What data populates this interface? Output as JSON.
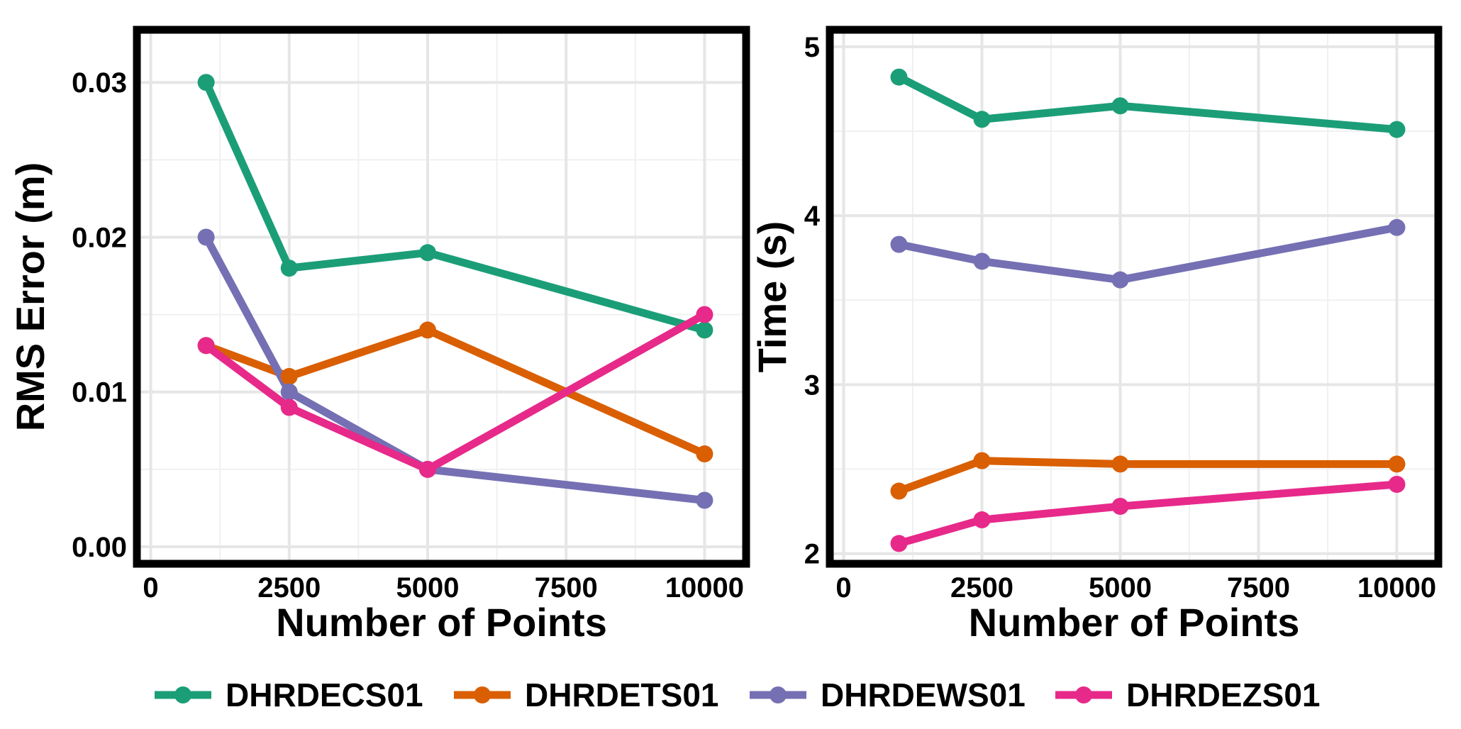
{
  "chart_data": [
    {
      "type": "line",
      "title": "",
      "xlabel": "Number of Points",
      "ylabel": "RMS Error (m)",
      "xlim": [
        -250,
        10750
      ],
      "ylim": [
        -0.0011,
        0.0334
      ],
      "x_ticks": [
        0,
        2500,
        5000,
        7500,
        10000
      ],
      "x_tick_labels": [
        "0",
        "2500",
        "5000",
        "7500",
        "10000"
      ],
      "y_ticks": [
        0,
        0.01,
        0.02,
        0.03
      ],
      "y_tick_labels": [
        "0.00",
        "0.01",
        "0.02",
        "0.03"
      ],
      "grid": true,
      "x": [
        1000,
        2500,
        5000,
        10000
      ],
      "series": [
        {
          "name": "DHRDECS01",
          "values": [
            0.03,
            0.018,
            0.019,
            0.014
          ]
        },
        {
          "name": "DHRDETS01",
          "values": [
            0.013,
            0.011,
            0.014,
            0.006
          ]
        },
        {
          "name": "DHRDEWS01",
          "values": [
            0.02,
            0.01,
            0.005,
            0.003
          ]
        },
        {
          "name": "DHRDEZS01",
          "values": [
            0.013,
            0.009,
            0.005,
            0.015
          ]
        }
      ]
    },
    {
      "type": "line",
      "title": "",
      "xlabel": "Number of Points",
      "ylabel": "Time (s)",
      "xlim": [
        -250,
        10750
      ],
      "ylim": [
        1.94,
        5.1
      ],
      "x_ticks": [
        0,
        2500,
        5000,
        7500,
        10000
      ],
      "x_tick_labels": [
        "0",
        "2500",
        "5000",
        "7500",
        "10000"
      ],
      "y_ticks": [
        2,
        3,
        4,
        5
      ],
      "y_tick_labels": [
        "2",
        "3",
        "4",
        "5"
      ],
      "grid": true,
      "x": [
        1000,
        2500,
        5000,
        10000
      ],
      "series": [
        {
          "name": "DHRDECS01",
          "values": [
            4.82,
            4.57,
            4.65,
            4.51
          ]
        },
        {
          "name": "DHRDETS01",
          "values": [
            2.37,
            2.55,
            2.53,
            2.53
          ]
        },
        {
          "name": "DHRDEWS01",
          "values": [
            3.83,
            3.73,
            3.62,
            3.93
          ]
        },
        {
          "name": "DHRDEZS01",
          "values": [
            2.06,
            2.2,
            2.28,
            2.41
          ]
        }
      ]
    }
  ],
  "legend": {
    "placement": "bottom",
    "items": [
      {
        "name": "DHRDECS01",
        "color": "#1b9e77"
      },
      {
        "name": "DHRDETS01",
        "color": "#d95f02"
      },
      {
        "name": "DHRDEWS01",
        "color": "#7570b3"
      },
      {
        "name": "DHRDEZS01",
        "color": "#e7298a"
      }
    ]
  },
  "colors": {
    "panel_border": "#000000",
    "grid_major": "#e6e6e6",
    "grid_minor": "#f0f0f0",
    "background": "#ffffff"
  }
}
